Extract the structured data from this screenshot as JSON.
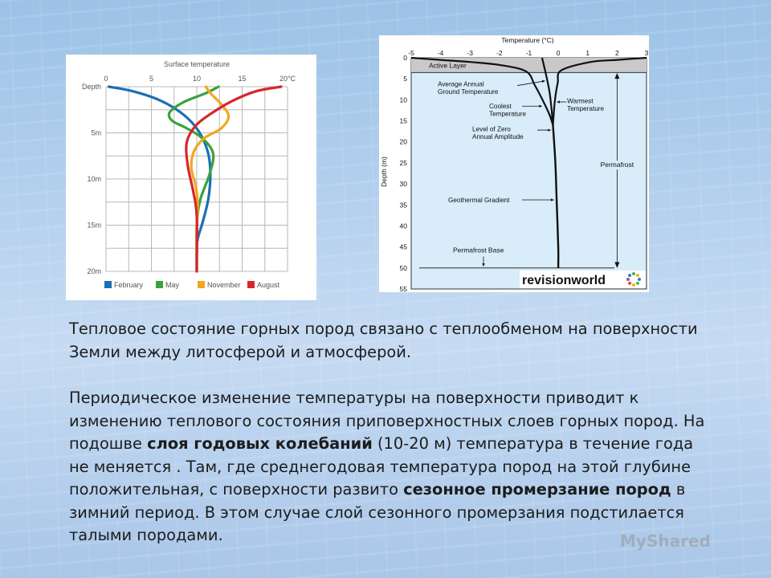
{
  "chart_data": [
    {
      "type": "line",
      "title": "Surface temperature",
      "xlim": [
        0,
        20
      ],
      "ylim": [
        0,
        20
      ],
      "x_ticks": [
        "0",
        "5",
        "10",
        "15",
        "20°C"
      ],
      "y_ticks": [
        "Depth",
        "5m",
        "10m",
        "15m",
        "20m"
      ],
      "y_tick_values": [
        0,
        5,
        10,
        15,
        20
      ],
      "series": [
        {
          "name": "February",
          "color": "#1b6fb5",
          "points": [
            [
              0.3,
              0
            ],
            [
              3,
              0.5
            ],
            [
              6,
              1.5
            ],
            [
              8.5,
              3
            ],
            [
              10.2,
              4.8
            ],
            [
              11.2,
              7
            ],
            [
              11.5,
              9.3
            ],
            [
              11.3,
              12
            ],
            [
              10.7,
              14.5
            ],
            [
              10.1,
              16.5
            ],
            [
              10,
              18
            ],
            [
              10,
              20
            ]
          ]
        },
        {
          "name": "May",
          "color": "#3aa23a",
          "points": [
            [
              12.4,
              0
            ],
            [
              11,
              0.7
            ],
            [
              8.5,
              1.7
            ],
            [
              7,
              2.8
            ],
            [
              7.3,
              3.7
            ],
            [
              8.7,
              4.4
            ],
            [
              10.5,
              5.5
            ],
            [
              11.8,
              7.2
            ],
            [
              11.4,
              9.5
            ],
            [
              10.4,
              12.2
            ],
            [
              10,
              15
            ],
            [
              10,
              20
            ]
          ]
        },
        {
          "name": "November",
          "color": "#f0a81e",
          "points": [
            [
              11,
              0
            ],
            [
              11.6,
              0.8
            ],
            [
              12.7,
              1.9
            ],
            [
              13.5,
              3.2
            ],
            [
              12.7,
              4.5
            ],
            [
              10.8,
              5.6
            ],
            [
              9.7,
              7
            ],
            [
              9.4,
              8.8
            ],
            [
              9.9,
              10.8
            ],
            [
              10.1,
              12.8
            ],
            [
              10,
              15
            ],
            [
              10,
              20
            ]
          ]
        },
        {
          "name": "August",
          "color": "#d7262c",
          "points": [
            [
              19.3,
              0
            ],
            [
              16.5,
              0.5
            ],
            [
              13.8,
              1.6
            ],
            [
              11.6,
              2.9
            ],
            [
              9.9,
              4.2
            ],
            [
              8.9,
              6
            ],
            [
              9,
              8.5
            ],
            [
              9.6,
              11.3
            ],
            [
              10,
              14
            ],
            [
              10,
              20
            ]
          ]
        }
      ]
    },
    {
      "type": "line",
      "title": "Temperature (°C)",
      "ylabel": "Depth (m)",
      "xlim": [
        -5,
        3
      ],
      "ylim": [
        0,
        55
      ],
      "x_ticks": [
        -5,
        -4,
        -3,
        -2,
        -1,
        0,
        1,
        2,
        3
      ],
      "y_ticks": [
        0,
        5,
        10,
        15,
        20,
        25,
        30,
        35,
        40,
        45,
        50,
        55
      ],
      "series": [
        {
          "name": "Coolest Temperature",
          "points": [
            [
              -5,
              0
            ],
            [
              -4,
              0.5
            ],
            [
              -3,
              1
            ],
            [
              -2,
              1.7
            ],
            [
              -1.1,
              3.2
            ],
            [
              -0.8,
              6.5
            ],
            [
              -0.5,
              10.5
            ],
            [
              -0.3,
              13.5
            ],
            [
              -0.18,
              16
            ]
          ]
        },
        {
          "name": "Warmest Temperature",
          "points": [
            [
              3,
              0
            ],
            [
              2,
              0.5
            ],
            [
              1.1,
              1
            ],
            [
              0.1,
              3
            ],
            [
              -0.02,
              6
            ],
            [
              -0.12,
              10.5
            ],
            [
              -0.18,
              16
            ]
          ]
        },
        {
          "name": "Average Annual Ground Temperature",
          "points": [
            [
              -0.55,
              0
            ],
            [
              -0.3,
              8
            ],
            [
              -0.18,
              16
            ]
          ]
        },
        {
          "name": "Geothermal Gradient",
          "points": [
            [
              -0.18,
              16
            ],
            [
              -0.1,
              25
            ],
            [
              -0.05,
              35
            ],
            [
              0,
              45
            ],
            [
              0,
              50
            ]
          ]
        }
      ],
      "labels": {
        "active_layer": "Active Layer",
        "average": "Average Annual\nGround Temperature",
        "coolest": "Coolest\nTemperature",
        "zero_amplitude": "Level of Zero\nAnnual Amplitude",
        "warmest": "Warmest\nTemperature",
        "permafrost": "Permafrost",
        "geothermal": "Geothermal Gradient",
        "base": "Permafrost Base"
      },
      "logo": "revisionworld"
    }
  ],
  "text": {
    "para1": "Тепловое состояние горных пород связано с теплообменом на поверхности Земли между литосферой и атмосферой.",
    "para2_a": "Периодическое изменение температуры на поверхности приводит к изменению теплового состояния приповерхностных слоев горных пород. На подошве ",
    "para2_b": "слоя годовых колебаний",
    "para2_c": " (10-20 м) температура в течение года не меняется . Там, где среднегодовая температура пород на этой глубине положительная, с поверхности развито ",
    "para2_d": "сезонное промерзание пород",
    "para2_e": " в зимний период. В этом случае слой сезонного промерзания подстилается талыми породами."
  },
  "watermark": "MyShared"
}
